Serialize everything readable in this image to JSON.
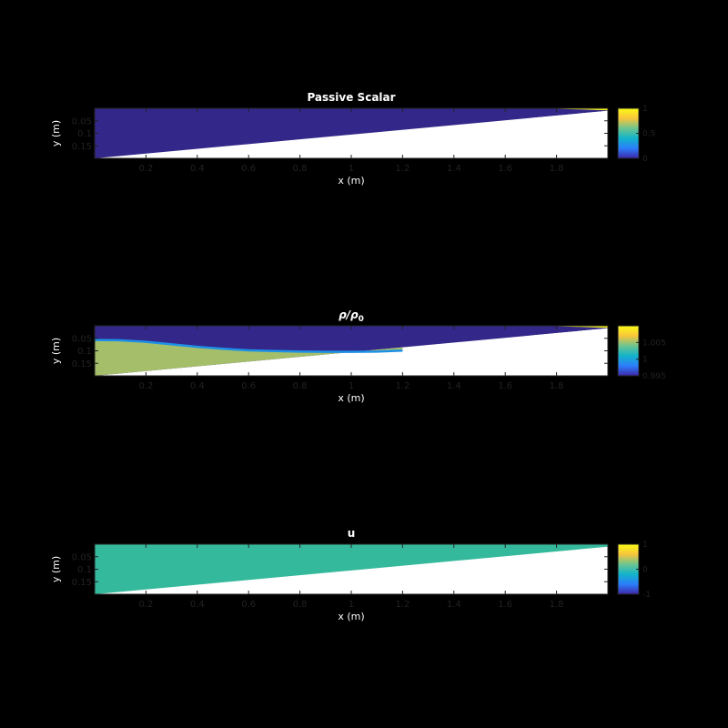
{
  "chart_data": [
    {
      "type": "heatmap",
      "title": "Passive Scalar",
      "xlabel": "x (m)",
      "ylabel": "y (m)",
      "xlim": [
        0,
        2
      ],
      "ylim": [
        0,
        0.2
      ],
      "y_reversed": true,
      "x_ticks": [
        "0.2",
        "0.4",
        "0.6",
        "0.8",
        "1",
        "1.2",
        "1.4",
        "1.6",
        "1.8"
      ],
      "x_tick_values": [
        0.2,
        0.4,
        0.6,
        0.8,
        1.0,
        1.2,
        1.4,
        1.6,
        1.8
      ],
      "y_ticks": [
        "0.05",
        "0.1",
        "0.15"
      ],
      "y_tick_values": [
        0.05,
        0.1,
        0.15
      ],
      "colorbar": {
        "ticks": [
          "0",
          "0.5",
          "1"
        ],
        "tick_values": [
          0,
          0.5,
          1
        ],
        "range": [
          0,
          1
        ]
      },
      "colormap": [
        "#3e26a8",
        "#2c7efb",
        "#12b4ca",
        "#6dc58f",
        "#f9c53b",
        "#f9fb15"
      ],
      "colors": {
        "field": "#33288a",
        "inflow": "#f9fb15",
        "topography": "#ffffff"
      },
      "fields": [
        {
          "name": "background",
          "value": 0
        },
        {
          "name": "inflow",
          "value": 1,
          "x_range": [
            1.7,
            2.0
          ]
        }
      ],
      "topography": {
        "x": [
          0,
          2
        ],
        "depth": [
          0.2,
          0.01
        ]
      }
    },
    {
      "type": "heatmap",
      "title": "ρ/ρ₀",
      "title_parts": {
        "symbol": "ρ",
        "slash": "/",
        "sub": "0"
      },
      "xlabel": "x (m)",
      "ylabel": "y (m)",
      "xlim": [
        0,
        2
      ],
      "ylim": [
        0,
        0.2
      ],
      "y_reversed": true,
      "x_ticks": [
        "0.2",
        "0.4",
        "0.6",
        "0.8",
        "1",
        "1.2",
        "1.4",
        "1.6",
        "1.8"
      ],
      "x_tick_values": [
        0.2,
        0.4,
        0.6,
        0.8,
        1.0,
        1.2,
        1.4,
        1.6,
        1.8
      ],
      "y_ticks": [
        "0.05",
        "0.1",
        "0.15"
      ],
      "y_tick_values": [
        0.05,
        0.1,
        0.15
      ],
      "colorbar": {
        "ticks": [
          "0.995",
          "1",
          "1.005"
        ],
        "tick_values": [
          0.995,
          1.0,
          1.005
        ],
        "range": [
          0.995,
          1.01
        ]
      },
      "colormap": [
        "#3e26a8",
        "#2c7efb",
        "#12b4ca",
        "#6dc58f",
        "#f9c53b",
        "#f9fb15"
      ],
      "colors": {
        "upper": "#33288a",
        "lower": "#a5be6a",
        "interface": "#1e90e6",
        "inflow": "#f9fb15",
        "topography": "#ffffff"
      },
      "fields": [
        {
          "name": "upper layer",
          "value": 0.995
        },
        {
          "name": "lower layer",
          "value": 1.007
        },
        {
          "name": "inflow",
          "value": 1.01,
          "x_range": [
            1.7,
            2.0
          ]
        }
      ],
      "interface": {
        "x": [
          0.0,
          0.1,
          0.2,
          0.3,
          0.4,
          0.5,
          0.6,
          0.7,
          0.8,
          0.9,
          1.0,
          1.1,
          1.2
        ],
        "depth": [
          0.057,
          0.058,
          0.064,
          0.074,
          0.084,
          0.092,
          0.098,
          0.101,
          0.103,
          0.104,
          0.104,
          0.103,
          0.099
        ]
      },
      "topography": {
        "x": [
          0,
          2
        ],
        "depth": [
          0.2,
          0.01
        ]
      }
    },
    {
      "type": "heatmap",
      "title": "u",
      "xlabel": "x (m)",
      "ylabel": "y (m)",
      "xlim": [
        0,
        2
      ],
      "ylim": [
        0,
        0.2
      ],
      "y_reversed": true,
      "x_ticks": [
        "0.2",
        "0.4",
        "0.6",
        "0.8",
        "1",
        "1.2",
        "1.4",
        "1.6",
        "1.8"
      ],
      "x_tick_values": [
        0.2,
        0.4,
        0.6,
        0.8,
        1.0,
        1.2,
        1.4,
        1.6,
        1.8
      ],
      "y_ticks": [
        "0.05",
        "0.1",
        "0.15"
      ],
      "y_tick_values": [
        0.05,
        0.1,
        0.15
      ],
      "colorbar": {
        "ticks": [
          "-1",
          "0",
          "1"
        ],
        "tick_values": [
          -1,
          0,
          1
        ],
        "range": [
          -1,
          1
        ]
      },
      "colormap": [
        "#3e26a8",
        "#2c7efb",
        "#12b4ca",
        "#6dc58f",
        "#f9c53b",
        "#f9fb15"
      ],
      "colors": {
        "field": "#35b99c",
        "topography": "#ffffff"
      },
      "fields": [
        {
          "name": "velocity",
          "value": 0
        }
      ],
      "topography": {
        "x": [
          0,
          2
        ],
        "depth": [
          0.2,
          0.01
        ]
      }
    }
  ]
}
